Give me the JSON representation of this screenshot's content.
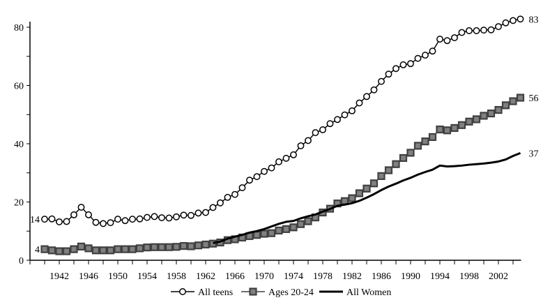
{
  "chart_data": {
    "type": "line",
    "title": "",
    "xlabel": "",
    "ylabel": "",
    "xlim": [
      1938,
      2005
    ],
    "ylim": [
      0,
      80
    ],
    "grid": false,
    "legend_position": "bottom",
    "yticks": [
      "0",
      "20",
      "40",
      "60",
      "80"
    ],
    "xticks": [
      "1942",
      "1946",
      "1950",
      "1954",
      "1958",
      "1962",
      "1966",
      "1970",
      "1974",
      "1978",
      "1982",
      "1986",
      "1990",
      "1994",
      "1998",
      "2002"
    ],
    "x": [
      1940,
      1941,
      1942,
      1943,
      1944,
      1945,
      1946,
      1947,
      1948,
      1949,
      1950,
      1951,
      1952,
      1953,
      1954,
      1955,
      1956,
      1957,
      1958,
      1959,
      1960,
      1961,
      1962,
      1963,
      1964,
      1965,
      1966,
      1967,
      1968,
      1969,
      1970,
      1971,
      1972,
      1973,
      1974,
      1975,
      1976,
      1977,
      1978,
      1979,
      1980,
      1981,
      1982,
      1983,
      1984,
      1985,
      1986,
      1987,
      1988,
      1989,
      1990,
      1991,
      1992,
      1993,
      1994,
      1995,
      1996,
      1997,
      1998,
      1999,
      2000,
      2001,
      2002,
      2003,
      2004,
      2005
    ],
    "series": [
      {
        "name": "All teens",
        "marker": "open-circle",
        "color": "#000000",
        "start_label": "14",
        "end_label": "83",
        "values": [
          14.1,
          14.2,
          13.2,
          13.3,
          15.6,
          18.2,
          15.6,
          13.0,
          12.6,
          12.9,
          14.1,
          13.6,
          14.1,
          14.2,
          14.7,
          15.0,
          14.6,
          14.5,
          14.9,
          15.5,
          15.4,
          16.2,
          16.4,
          18.1,
          19.7,
          21.6,
          22.6,
          24.9,
          27.5,
          28.7,
          30.5,
          31.7,
          33.8,
          35.0,
          36.2,
          39.3,
          41.1,
          43.8,
          44.8,
          46.9,
          48.3,
          49.9,
          51.3,
          54.0,
          56.2,
          58.5,
          61.4,
          63.9,
          65.8,
          67.1,
          67.5,
          69.3,
          70.4,
          71.8,
          75.9,
          75.4,
          76.4,
          78.2,
          78.8,
          78.8,
          79.0,
          79.1,
          80.2,
          81.5,
          82.3,
          82.8
        ]
      },
      {
        "name": "Ages 20-24",
        "marker": "filled-square",
        "color": "#404040",
        "fill": "#808080",
        "start_label": "4",
        "end_label": "56",
        "values": [
          3.8,
          3.4,
          3.1,
          3.1,
          3.8,
          4.7,
          4.1,
          3.4,
          3.4,
          3.4,
          3.8,
          3.8,
          3.8,
          4.1,
          4.4,
          4.5,
          4.5,
          4.5,
          4.6,
          4.9,
          4.8,
          5.1,
          5.4,
          5.7,
          6.1,
          6.9,
          7.2,
          7.8,
          8.3,
          8.7,
          9.1,
          9.3,
          10.2,
          10.7,
          11.3,
          12.4,
          13.4,
          14.7,
          16.4,
          17.7,
          19.5,
          20.3,
          21.3,
          23.0,
          24.6,
          26.4,
          28.9,
          30.9,
          33.0,
          35.1,
          36.9,
          39.3,
          40.8,
          42.3,
          44.9,
          44.6,
          45.4,
          46.4,
          47.6,
          48.4,
          49.6,
          50.4,
          51.6,
          53.2,
          54.6,
          55.8
        ]
      },
      {
        "name": "All Women",
        "marker": "none",
        "color": "#000000",
        "end_label": "37",
        "values": [
          null,
          null,
          null,
          null,
          null,
          null,
          null,
          null,
          null,
          null,
          null,
          null,
          null,
          null,
          null,
          null,
          null,
          null,
          null,
          null,
          null,
          null,
          null,
          5.9,
          6.4,
          7.4,
          8.1,
          8.7,
          9.5,
          10.0,
          10.7,
          11.6,
          12.5,
          13.2,
          13.5,
          14.4,
          15.1,
          15.7,
          16.7,
          17.6,
          18.7,
          19.1,
          19.6,
          20.4,
          21.5,
          22.7,
          24.1,
          25.3,
          26.3,
          27.4,
          28.3,
          29.4,
          30.3,
          31.1,
          32.5,
          32.2,
          32.3,
          32.5,
          32.8,
          33.0,
          33.2,
          33.5,
          33.9,
          34.6,
          35.8,
          36.8
        ]
      }
    ]
  }
}
